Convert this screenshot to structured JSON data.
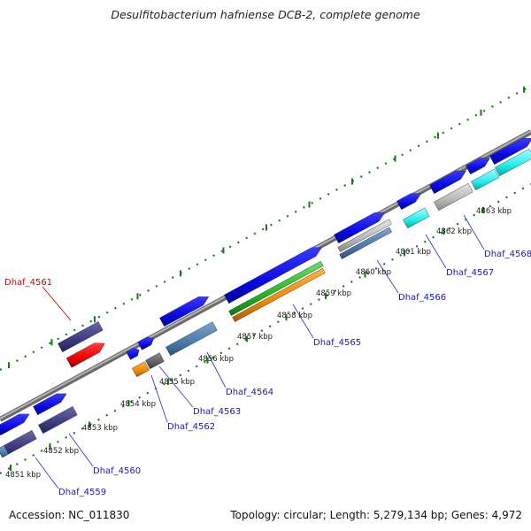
{
  "title": "Desulfitobacterium hafniense DCB-2, complete genome",
  "accession_text": "Accession: NC_011830",
  "summary_text": "Topology: circular; Length: 5,279,134 bp; Genes: 4,972",
  "colors": {
    "backbone": "#8a8a8a",
    "tick_dots": "#1a7a1a",
    "label_blue": "#1a1aa8",
    "label_red": "#cc0000",
    "leader_line": "#3a3ad0"
  },
  "kbp_labels": [
    "4851 kbp",
    "4852 kbp",
    "4853 kbp",
    "4854 kbp",
    "4855 kbp",
    "4856 kbp",
    "4857 kbp",
    "4858 kbp",
    "4859 kbp",
    "4860 kbp",
    "4861 kbp",
    "4862 kbp",
    "4863 kbp"
  ],
  "gene_labels": [
    "Dhaf_4559",
    "Dhaf_4560",
    "Dhaf_4561",
    "Dhaf_4562",
    "Dhaf_4563",
    "Dhaf_4564",
    "Dhaf_4565",
    "Dhaf_4566",
    "Dhaf_4567",
    "Dhaf_4568"
  ],
  "highlighted_gene": "Dhaf_4561"
}
